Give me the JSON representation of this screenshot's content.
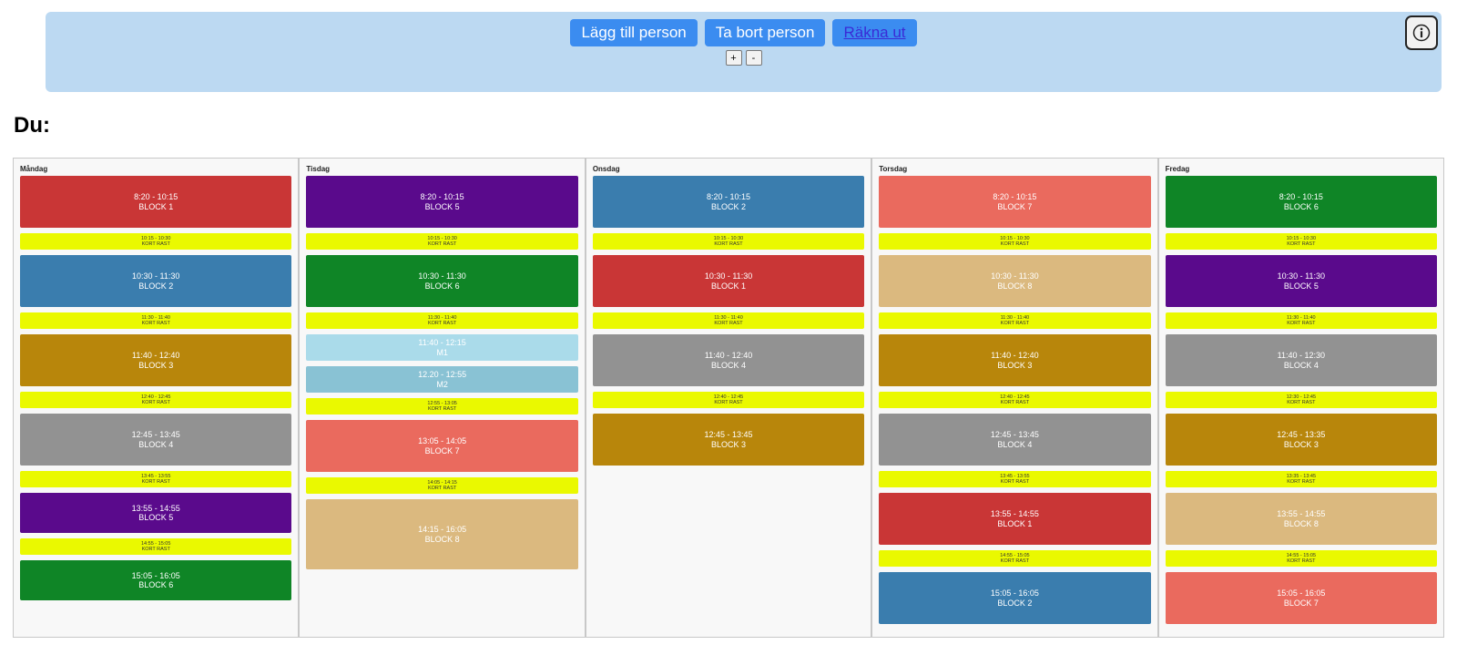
{
  "toolbar": {
    "add_person": "Lägg till person",
    "remove_person": "Ta bort person",
    "calculate": "Räkna ut",
    "zoom_in": "+",
    "zoom_out": "-",
    "info_icon": "info-icon"
  },
  "heading": "Du:",
  "colors": {
    "BLOCK 1": "#c93636",
    "BLOCK 2": "#3a7dae",
    "BLOCK 3": "#b8860b",
    "BLOCK 4": "#929292",
    "BLOCK 5": "#5a0a8c",
    "BLOCK 6": "#0f8526",
    "BLOCK 7": "#ea6a5e",
    "BLOCK 8": "#dbb97f",
    "KORT RAST": "#eaf900",
    "M1": "#aadbea",
    "M2": "#89c2d4"
  },
  "days": [
    {
      "name": "Måndag",
      "slots": [
        {
          "time": "8:20 - 10:15",
          "label": "BLOCK 1"
        },
        {
          "time": "10:15 - 10:30",
          "label": "KORT RAST"
        },
        {
          "time": "10:30 - 11:30",
          "label": "BLOCK 2"
        },
        {
          "time": "11:30 - 11:40",
          "label": "KORT RAST"
        },
        {
          "time": "11:40 - 12:40",
          "label": "BLOCK 3"
        },
        {
          "time": "12:40 - 12:45",
          "label": "KORT RAST"
        },
        {
          "time": "12:45 - 13:45",
          "label": "BLOCK 4"
        },
        {
          "time": "13:45 - 13:55",
          "label": "KORT RAST"
        },
        {
          "time": "13:55 - 14:55",
          "label": "BLOCK 5"
        },
        {
          "time": "14:55 - 15:05",
          "label": "KORT RAST"
        },
        {
          "time": "15:05 - 16:05",
          "label": "BLOCK 6"
        }
      ]
    },
    {
      "name": "Tisdag",
      "slots": [
        {
          "time": "8:20 - 10:15",
          "label": "BLOCK 5"
        },
        {
          "time": "10:15 - 10:30",
          "label": "KORT RAST"
        },
        {
          "time": "10:30 - 11:30",
          "label": "BLOCK 6"
        },
        {
          "time": "11:30 - 11:40",
          "label": "KORT RAST"
        },
        {
          "time": "11:40 - 12:15",
          "label": "M1"
        },
        {
          "time": "12.20 - 12:55",
          "label": "M2"
        },
        {
          "time": "12:55 - 13:05",
          "label": "KORT RAST"
        },
        {
          "time": "13:05 - 14:05",
          "label": "BLOCK 7"
        },
        {
          "time": "14:05 - 14:15",
          "label": "KORT RAST"
        },
        {
          "time": "14:15 - 16:05",
          "label": "BLOCK 8"
        }
      ]
    },
    {
      "name": "Onsdag",
      "slots": [
        {
          "time": "8:20 - 10:15",
          "label": "BLOCK 2"
        },
        {
          "time": "10:15 - 10:30",
          "label": "KORT RAST"
        },
        {
          "time": "10:30 - 11:30",
          "label": "BLOCK 1"
        },
        {
          "time": "11:30 - 11:40",
          "label": "KORT RAST"
        },
        {
          "time": "11:40 - 12:40",
          "label": "BLOCK 4"
        },
        {
          "time": "12:40 - 12:45",
          "label": "KORT RAST"
        },
        {
          "time": "12:45 - 13:45",
          "label": "BLOCK 3"
        }
      ]
    },
    {
      "name": "Torsdag",
      "slots": [
        {
          "time": "8:20 - 10:15",
          "label": "BLOCK 7"
        },
        {
          "time": "10:15 - 10:30",
          "label": "KORT RAST"
        },
        {
          "time": "10:30 - 11:30",
          "label": "BLOCK 8"
        },
        {
          "time": "11:30 - 11:40",
          "label": "KORT RAST"
        },
        {
          "time": "11:40 - 12:40",
          "label": "BLOCK 3"
        },
        {
          "time": "12:40 - 12:45",
          "label": "KORT RAST"
        },
        {
          "time": "12:45 - 13:45",
          "label": "BLOCK 4"
        },
        {
          "time": "13:45 - 13:55",
          "label": "KORT RAST"
        },
        {
          "time": "13:55 - 14:55",
          "label": "BLOCK 1"
        },
        {
          "time": "14:55 - 15:05",
          "label": "KORT RAST"
        },
        {
          "time": "15:05 - 16:05",
          "label": "BLOCK 2"
        }
      ]
    },
    {
      "name": "Fredag",
      "slots": [
        {
          "time": "8:20 - 10:15",
          "label": "BLOCK 6"
        },
        {
          "time": "10:15 - 10:30",
          "label": "KORT RAST"
        },
        {
          "time": "10:30 - 11:30",
          "label": "BLOCK 5"
        },
        {
          "time": "11:30 - 11:40",
          "label": "KORT RAST"
        },
        {
          "time": "11:40 - 12:30",
          "label": "BLOCK 4"
        },
        {
          "time": "12:30 - 12:45",
          "label": "KORT RAST"
        },
        {
          "time": "12:45 - 13:35",
          "label": "BLOCK 3"
        },
        {
          "time": "13:35 - 13:45",
          "label": "KORT RAST"
        },
        {
          "time": "13:55 - 14:55",
          "label": "BLOCK 8"
        },
        {
          "time": "14:55 - 15:05",
          "label": "KORT RAST"
        },
        {
          "time": "15:05 - 16:05",
          "label": "BLOCK 7"
        }
      ]
    }
  ]
}
